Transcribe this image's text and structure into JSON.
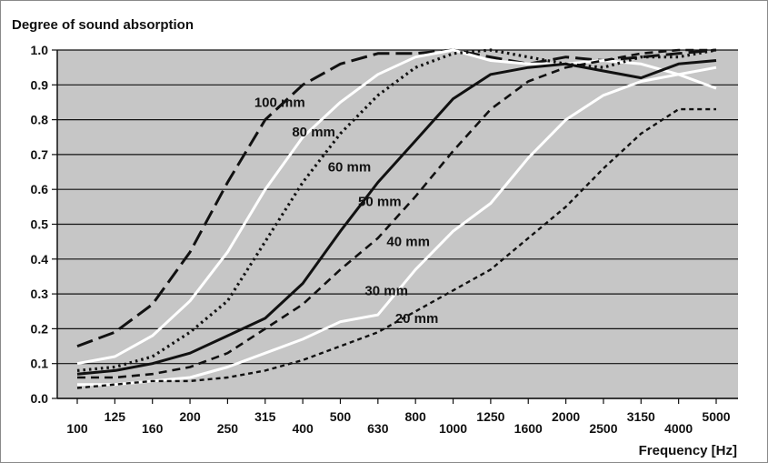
{
  "chart_data": {
    "type": "line",
    "ylabel": "Degree of sound absorption",
    "xlabel": "Frequency [Hz]",
    "ylim": [
      0.0,
      1.0
    ],
    "yticks": [
      "0.0",
      "0.1",
      "0.2",
      "0.3",
      "0.4",
      "0.5",
      "0.6",
      "0.7",
      "0.8",
      "0.9",
      "1.0"
    ],
    "x": [
      100,
      125,
      160,
      200,
      250,
      315,
      400,
      500,
      630,
      800,
      1000,
      1250,
      1600,
      2000,
      2500,
      3150,
      4000,
      5000
    ],
    "xtick_labels": [
      "100",
      "125",
      "160",
      "200",
      "250",
      "315",
      "400",
      "500",
      "630",
      "800",
      "1000",
      "1250",
      "1600",
      "2000",
      "2500",
      "3150",
      "4000",
      "5000"
    ],
    "grid": "horizontal",
    "background": "#c6c6c6",
    "series": [
      {
        "name": "100 mm",
        "style": "long-dash",
        "color": "#111111",
        "values": [
          0.15,
          0.19,
          0.27,
          0.42,
          0.62,
          0.8,
          0.9,
          0.96,
          0.99,
          0.99,
          1.0,
          0.98,
          0.96,
          0.98,
          0.97,
          0.98,
          0.99,
          1.0
        ]
      },
      {
        "name": "80 mm",
        "style": "solid",
        "color": "#ffffff",
        "values": [
          0.1,
          0.12,
          0.18,
          0.28,
          0.42,
          0.6,
          0.75,
          0.85,
          0.93,
          0.98,
          1.0,
          0.97,
          0.96,
          0.96,
          0.97,
          0.96,
          0.93,
          0.89
        ]
      },
      {
        "name": "60 mm",
        "style": "dotted",
        "color": "#111111",
        "values": [
          0.08,
          0.09,
          0.12,
          0.19,
          0.28,
          0.45,
          0.62,
          0.76,
          0.87,
          0.95,
          0.99,
          1.0,
          0.98,
          0.96,
          0.95,
          0.98,
          0.98,
          1.0
        ]
      },
      {
        "name": "50 mm",
        "style": "solid",
        "color": "#111111",
        "values": [
          0.07,
          0.08,
          0.1,
          0.13,
          0.18,
          0.23,
          0.33,
          0.48,
          0.62,
          0.74,
          0.86,
          0.93,
          0.95,
          0.96,
          0.94,
          0.92,
          0.96,
          0.97
        ]
      },
      {
        "name": "40 mm",
        "style": "dash",
        "color": "#111111",
        "values": [
          0.06,
          0.06,
          0.07,
          0.09,
          0.13,
          0.2,
          0.27,
          0.37,
          0.46,
          0.58,
          0.71,
          0.83,
          0.91,
          0.95,
          0.97,
          0.99,
          1.0,
          1.0
        ]
      },
      {
        "name": "30 mm",
        "style": "solid",
        "color": "#ffffff",
        "values": [
          0.04,
          0.04,
          0.05,
          0.06,
          0.09,
          0.13,
          0.17,
          0.22,
          0.24,
          0.37,
          0.48,
          0.56,
          0.69,
          0.8,
          0.87,
          0.91,
          0.93,
          0.95
        ]
      },
      {
        "name": "20 mm",
        "style": "short-dash",
        "color": "#111111",
        "values": [
          0.03,
          0.04,
          0.05,
          0.05,
          0.06,
          0.08,
          0.11,
          0.15,
          0.19,
          0.25,
          0.31,
          0.37,
          0.46,
          0.55,
          0.66,
          0.76,
          0.83,
          0.83
        ]
      }
    ]
  }
}
